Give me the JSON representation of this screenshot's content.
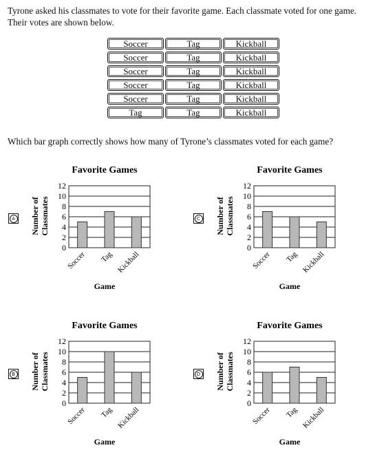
{
  "intro": "Tyrone asked his classmates to vote for their favorite game. Each classmate voted for one game. Their votes are shown below.",
  "votes": [
    [
      "Soccer",
      "Tag",
      "Kickball"
    ],
    [
      "Soccer",
      "Tag",
      "Kickball"
    ],
    [
      "Soccer",
      "Tag",
      "Kickball"
    ],
    [
      "Soccer",
      "Tag",
      "Kickball"
    ],
    [
      "Soccer",
      "Tag",
      "Kickball"
    ],
    [
      "Tag",
      "Tag",
      "Kickball"
    ]
  ],
  "question": "Which bar graph correctly shows how many of Tyrone’s classmates voted for each game?",
  "chart_data": [
    {
      "choice": "A",
      "type": "bar",
      "title": "Favorite Games",
      "xlabel": "Game",
      "ylabel": "Number of Classmates",
      "categories": [
        "Soccer",
        "Tag",
        "Kickball"
      ],
      "values": [
        5,
        7,
        6
      ],
      "yticks": [
        "0",
        "2",
        "4",
        "6",
        "8",
        "10",
        "12"
      ],
      "ylim": [
        0,
        12
      ],
      "grid": true,
      "bar_color": "#b8b8b8"
    },
    {
      "choice": "C",
      "type": "bar",
      "title": "Favorite Games",
      "xlabel": "Game",
      "ylabel": "Number of Classmates",
      "categories": [
        "Soccer",
        "Tag",
        "Kickball"
      ],
      "values": [
        7,
        6,
        5
      ],
      "yticks": [
        "0",
        "2",
        "4",
        "6",
        "8",
        "10",
        "12"
      ],
      "ylim": [
        0,
        12
      ],
      "grid": true,
      "bar_color": "#b8b8b8"
    },
    {
      "choice": "B",
      "type": "bar",
      "title": "Favorite Games",
      "xlabel": "Game",
      "ylabel": "Number of Classmates",
      "categories": [
        "Soccer",
        "Tag",
        "Kickball"
      ],
      "values": [
        5,
        10,
        6
      ],
      "yticks": [
        "0",
        "2",
        "4",
        "6",
        "8",
        "10",
        "12"
      ],
      "ylim": [
        0,
        12
      ],
      "grid": true,
      "bar_color": "#b8b8b8"
    },
    {
      "choice": "D",
      "type": "bar",
      "title": "Favorite Games",
      "xlabel": "Game",
      "ylabel": "Number of Classmates",
      "categories": [
        "Soccer",
        "Tag",
        "Kickball"
      ],
      "values": [
        6,
        7,
        5
      ],
      "yticks": [
        "0",
        "2",
        "4",
        "6",
        "8",
        "10",
        "12"
      ],
      "ylim": [
        0,
        12
      ],
      "grid": true,
      "bar_color": "#b8b8b8"
    }
  ]
}
